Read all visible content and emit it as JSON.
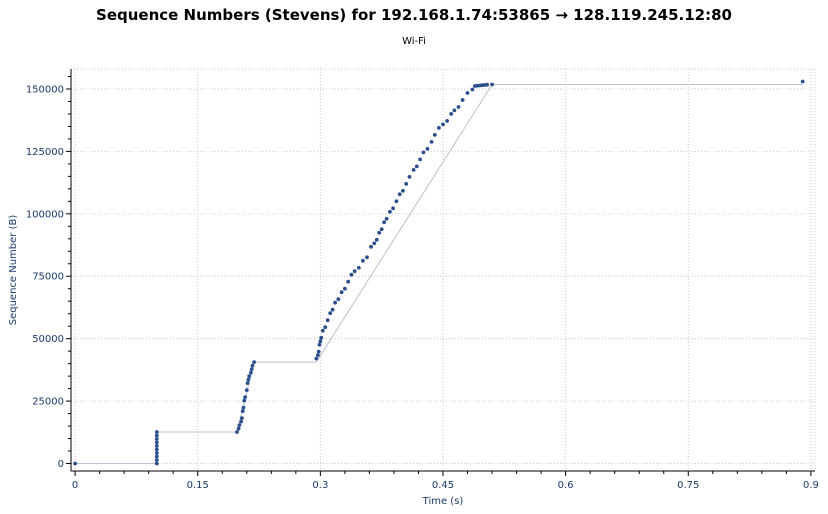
{
  "chart_data": {
    "type": "scatter",
    "title": "Sequence Numbers (Stevens) for 192.168.1.74:53865 → 128.119.245.12:80",
    "subtitle": "Wi-Fi",
    "xlabel": "Time (s)",
    "ylabel": "Sequence Number (B)",
    "xlim": [
      -0.005,
      0.905
    ],
    "ylim": [
      -3000,
      158000
    ],
    "grid": true,
    "x_ticks": [
      0,
      0.15,
      0.3,
      0.45,
      0.6,
      0.75,
      0.9
    ],
    "x_tick_labels": [
      "0",
      "0.15",
      "0.3",
      "0.45",
      "0.6",
      "0.75",
      "0.9"
    ],
    "y_ticks": [
      0,
      25000,
      50000,
      75000,
      100000,
      125000,
      150000
    ],
    "y_tick_labels": [
      "0",
      "25000",
      "50000",
      "75000",
      "100000",
      "125000",
      "150000"
    ],
    "colors": {
      "points": "#2b4f8c",
      "line": "#b8c2d0",
      "grid": "#c8c8c8",
      "axis": "#1a3a6b"
    },
    "series": [
      {
        "x": [
          0,
          0.1,
          0.1,
          0.1,
          0.1,
          0.1,
          0.1,
          0.1,
          0.1,
          0.1,
          0.1,
          0.198,
          0.2,
          0.201,
          0.203,
          0.204,
          0.205,
          0.206,
          0.207,
          0.208,
          0.21,
          0.211,
          0.212,
          0.213,
          0.215,
          0.216,
          0.217,
          0.219,
          0.295,
          0.297,
          0.298,
          0.299,
          0.3,
          0.301,
          0.303,
          0.306,
          0.309,
          0.312,
          0.315,
          0.318,
          0.322,
          0.326,
          0.33,
          0.334,
          0.338,
          0.342,
          0.347,
          0.352,
          0.357,
          0.362,
          0.366,
          0.369,
          0.372,
          0.375,
          0.378,
          0.381,
          0.385,
          0.389,
          0.393,
          0.397,
          0.401,
          0.405,
          0.409,
          0.414,
          0.418,
          0.422,
          0.426,
          0.431,
          0.436,
          0.44,
          0.445,
          0.45,
          0.455,
          0.46,
          0.464,
          0.469,
          0.474,
          0.48,
          0.486,
          0.489,
          0.492,
          0.495,
          0.498,
          0.501,
          0.504,
          0.51,
          0.89
        ],
        "y": [
          0,
          0,
          1400,
          2800,
          4200,
          5600,
          7000,
          8400,
          9800,
          11200,
          12600,
          12600,
          14000,
          15400,
          16800,
          18200,
          21000,
          22400,
          25200,
          26600,
          29400,
          32200,
          33600,
          35000,
          36400,
          37800,
          39200,
          40600,
          42000,
          43400,
          44800,
          47600,
          49000,
          50400,
          53200,
          54600,
          57400,
          60200,
          61600,
          64400,
          65800,
          68600,
          70000,
          72800,
          75600,
          77000,
          78400,
          81200,
          82600,
          86800,
          88200,
          89600,
          92400,
          93800,
          96600,
          98000,
          100800,
          102200,
          105000,
          107800,
          109200,
          112000,
          114800,
          117600,
          119000,
          121800,
          124600,
          126000,
          128800,
          131600,
          134400,
          135800,
          137200,
          140000,
          141400,
          142800,
          145600,
          148400,
          149800,
          151200,
          151300,
          151400,
          151500,
          151600,
          151700,
          151800,
          153000
        ]
      }
    ],
    "trace_line": {
      "x": [
        0,
        0.1,
        0.1,
        0.198,
        0.219,
        0.295,
        0.51,
        0.89
      ],
      "y": [
        0,
        0,
        12600,
        12600,
        40600,
        40600,
        151800,
        151800
      ]
    }
  }
}
